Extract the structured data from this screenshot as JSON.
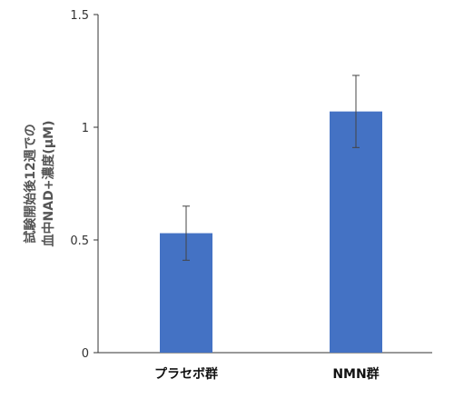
{
  "chart_data": {
    "type": "bar",
    "categories": [
      "プラセボ群",
      "NMN群"
    ],
    "values": [
      0.53,
      1.07
    ],
    "error": [
      0.12,
      0.16
    ],
    "ylabel_lines": [
      "試験開始後12週での",
      "血中NAD+濃度(µM)"
    ],
    "ylim": [
      0,
      1.5
    ],
    "yticks": [
      "0",
      "0.5",
      "1",
      "1.5"
    ],
    "grid": false,
    "legend": "none",
    "colors": {
      "bar": "#4472c4",
      "axis": "#333333",
      "error": "#444444"
    }
  }
}
